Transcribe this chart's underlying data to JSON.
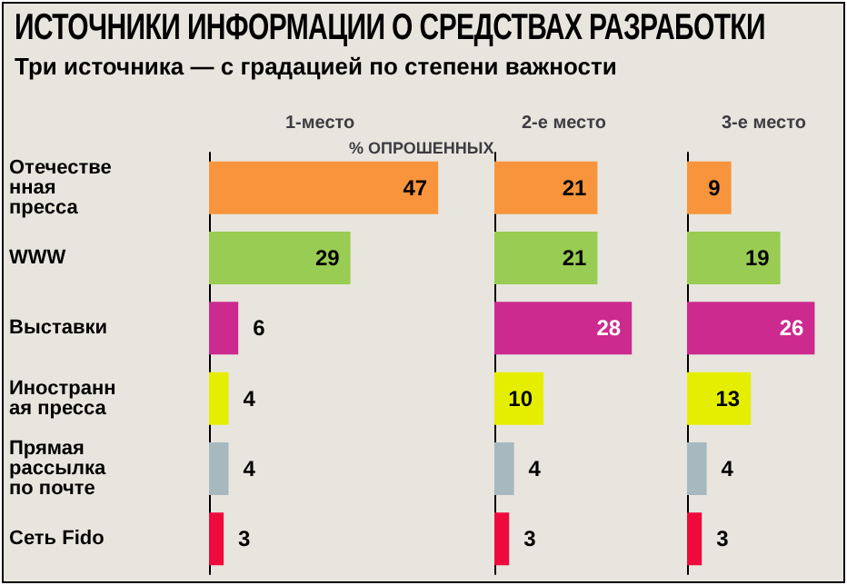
{
  "chart_data": [
    {
      "type": "bar",
      "orientation": "horizontal",
      "title": "ИСТОЧНИКИ ИНФОРМАЦИИ О СРЕДСТВАХ РАЗРАБОТКИ",
      "subtitle": "Три источника — с градацией по степени важности",
      "annotations": [
        "1-место"
      ],
      "xlabel": "% ОПРОШЕННЫХ",
      "categories": [
        "Отечественная пресса",
        "WWW",
        "Выставки",
        "Иностранная пресса",
        "Прямая рассылка по почте",
        "Сеть Fido"
      ],
      "values": [
        47,
        29,
        6,
        4,
        4,
        3
      ],
      "colors": [
        "#f7943c",
        "#99cc52",
        "#cc2a8f",
        "#e6ee00",
        "#a7b8bf",
        "#ee0a3c"
      ],
      "data_labels": true,
      "tick_labels": "y"
    },
    {
      "type": "bar",
      "orientation": "horizontal",
      "title": "2-е место",
      "categories": [
        "Отечественная пресса",
        "WWW",
        "Выставки",
        "Иностранная пресса",
        "Прямая рассылка по почте",
        "Сеть Fido"
      ],
      "values": [
        21,
        21,
        28,
        10,
        4,
        3
      ],
      "colors": [
        "#f7943c",
        "#99cc52",
        "#cc2a8f",
        "#e6ee00",
        "#a7b8bf",
        "#ee0a3c"
      ],
      "data_labels": true,
      "tick_labels": false
    },
    {
      "type": "bar",
      "orientation": "horizontal",
      "title": "3-е место",
      "categories": [
        "Отечественная пресса",
        "WWW",
        "Выставки",
        "Иностранная пресса",
        "Прямая рассылка по почте",
        "Сеть Fido"
      ],
      "values": [
        9,
        19,
        26,
        13,
        4,
        3
      ],
      "colors": [
        "#f7943c",
        "#99cc52",
        "#cc2a8f",
        "#e6ee00",
        "#a7b8bf",
        "#ee0a3c"
      ],
      "data_labels": true,
      "tick_labels": false
    }
  ]
}
